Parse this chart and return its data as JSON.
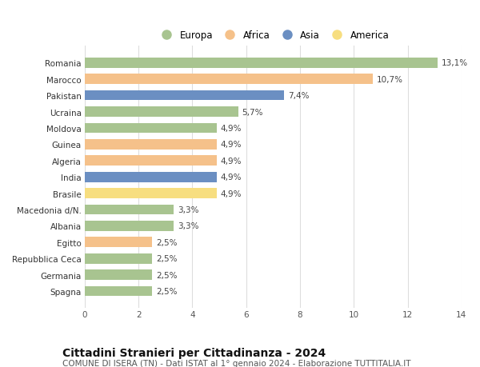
{
  "countries": [
    "Romania",
    "Marocco",
    "Pakistan",
    "Ucraina",
    "Moldova",
    "Guinea",
    "Algeria",
    "India",
    "Brasile",
    "Macedonia d/N.",
    "Albania",
    "Egitto",
    "Repubblica Ceca",
    "Germania",
    "Spagna"
  ],
  "values": [
    13.1,
    10.7,
    7.4,
    5.7,
    4.9,
    4.9,
    4.9,
    4.9,
    4.9,
    3.3,
    3.3,
    2.5,
    2.5,
    2.5,
    2.5
  ],
  "labels": [
    "13,1%",
    "10,7%",
    "7,4%",
    "5,7%",
    "4,9%",
    "4,9%",
    "4,9%",
    "4,9%",
    "4,9%",
    "3,3%",
    "3,3%",
    "2,5%",
    "2,5%",
    "2,5%",
    "2,5%"
  ],
  "continents": [
    "Europa",
    "Africa",
    "Asia",
    "Europa",
    "Europa",
    "Africa",
    "Africa",
    "Asia",
    "America",
    "Europa",
    "Europa",
    "Africa",
    "Europa",
    "Europa",
    "Europa"
  ],
  "colors": {
    "Europa": "#a8c490",
    "Africa": "#f5c18a",
    "Asia": "#6b8fc2",
    "America": "#f7de80"
  },
  "xlim": [
    0,
    14
  ],
  "xticks": [
    0,
    2,
    4,
    6,
    8,
    10,
    12,
    14
  ],
  "title": "Cittadini Stranieri per Cittadinanza - 2024",
  "subtitle": "COMUNE DI ISERA (TN) - Dati ISTAT al 1° gennaio 2024 - Elaborazione TUTTITALIA.IT",
  "background_color": "#ffffff",
  "grid_color": "#dddddd",
  "bar_height": 0.62,
  "label_fontsize": 7.5,
  "tick_fontsize": 7.5,
  "title_fontsize": 10,
  "subtitle_fontsize": 7.5,
  "legend_order": [
    "Europa",
    "Africa",
    "Asia",
    "America"
  ]
}
